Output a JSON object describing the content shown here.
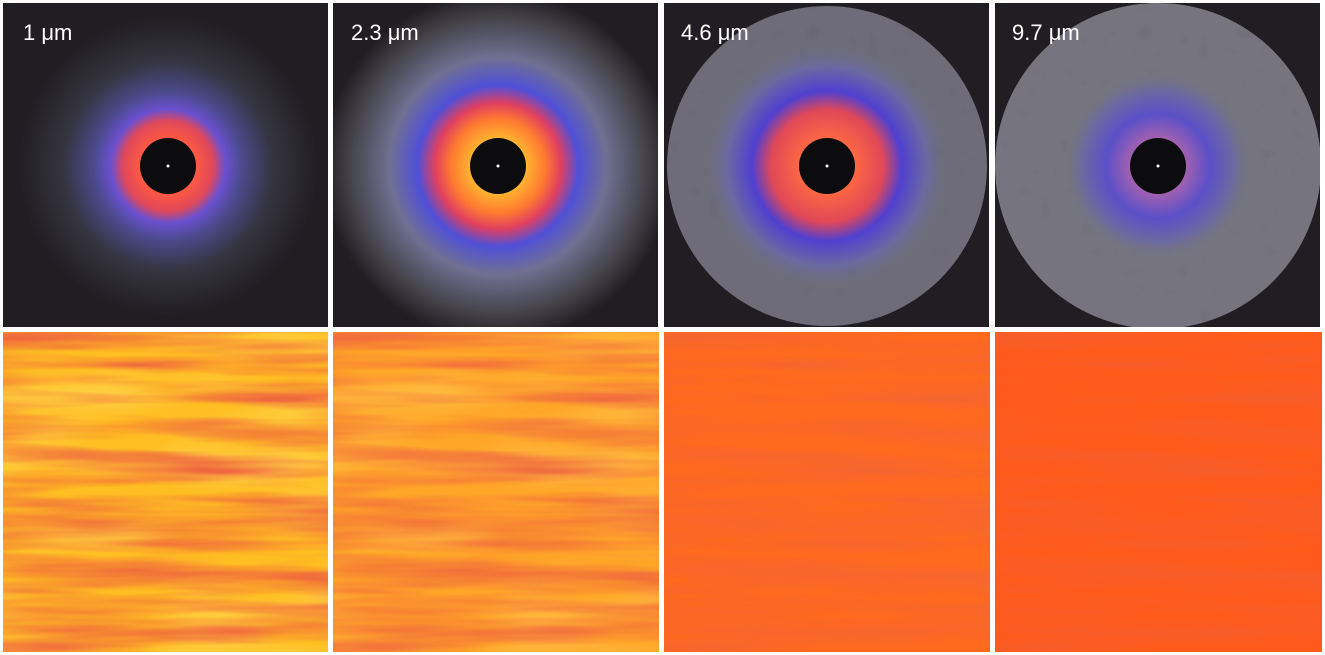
{
  "panels": [
    {
      "label": "1 μm"
    },
    {
      "label": "2.3 μm"
    },
    {
      "label": "4.6 μm"
    },
    {
      "label": "9.7 μm"
    }
  ]
}
